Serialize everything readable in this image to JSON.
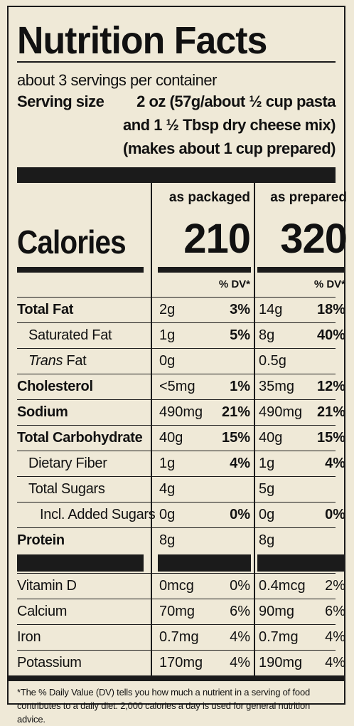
{
  "title": "Nutrition Facts",
  "servings_per_container": "about 3 servings per container",
  "serving_size": {
    "label": "Serving size",
    "line1": "2 oz (57g/about ½ cup pasta",
    "line2": "and 1 ½ Tbsp dry cheese mix)",
    "line3": "(makes about 1 cup prepared)"
  },
  "columns": {
    "packaged": "as packaged",
    "prepared": "as prepared"
  },
  "calories": {
    "label": "Calories",
    "packaged": "210",
    "prepared": "320"
  },
  "dv_label": "% DV*",
  "nutrients": [
    {
      "label": "Total Fat",
      "amt1": "2g",
      "dv1": "3%",
      "amt2": "14g",
      "dv2": "18%"
    },
    {
      "label": "Saturated Fat",
      "amt1": "1g",
      "dv1": "5%",
      "amt2": "8g",
      "dv2": "40%"
    },
    {
      "label_italic": "Trans",
      "label_rest": " Fat",
      "amt1": "0g",
      "dv1": "",
      "amt2": "0.5g",
      "dv2": ""
    },
    {
      "label": "Cholesterol",
      "amt1": "<5mg",
      "dv1": "1%",
      "amt2": "35mg",
      "dv2": "12%"
    },
    {
      "label": "Sodium",
      "amt1": "490mg",
      "dv1": "21%",
      "amt2": "490mg",
      "dv2": "21%"
    },
    {
      "label": "Total Carbohydrate",
      "amt1": "40g",
      "dv1": "15%",
      "amt2": "40g",
      "dv2": "15%"
    },
    {
      "label": "Dietary Fiber",
      "amt1": "1g",
      "dv1": "4%",
      "amt2": "1g",
      "dv2": "4%"
    },
    {
      "label": "Total Sugars",
      "amt1": "4g",
      "dv1": "",
      "amt2": "5g",
      "dv2": ""
    },
    {
      "label": "Incl. Added Sugars",
      "amt1": "0g",
      "dv1": "0%",
      "amt2": "0g",
      "dv2": "0%"
    },
    {
      "label": "Protein",
      "amt1": "8g",
      "dv1": "",
      "amt2": "8g",
      "dv2": ""
    }
  ],
  "vitamins": [
    {
      "label": "Vitamin D",
      "amt1": "0mcg",
      "dv1": "0%",
      "amt2": "0.4mcg",
      "dv2": "2%"
    },
    {
      "label": "Calcium",
      "amt1": "70mg",
      "dv1": "6%",
      "amt2": "90mg",
      "dv2": "6%"
    },
    {
      "label": "Iron",
      "amt1": "0.7mg",
      "dv1": "4%",
      "amt2": "0.7mg",
      "dv2": "4%"
    },
    {
      "label": "Potassium",
      "amt1": "170mg",
      "dv1": "4%",
      "amt2": "190mg",
      "dv2": "4%"
    }
  ],
  "footnote": "*The % Daily Value (DV) tells you how much a nutrient in a serving of food contributes to a daily diet. 2,000 calories a day is used for general nutrition advice."
}
